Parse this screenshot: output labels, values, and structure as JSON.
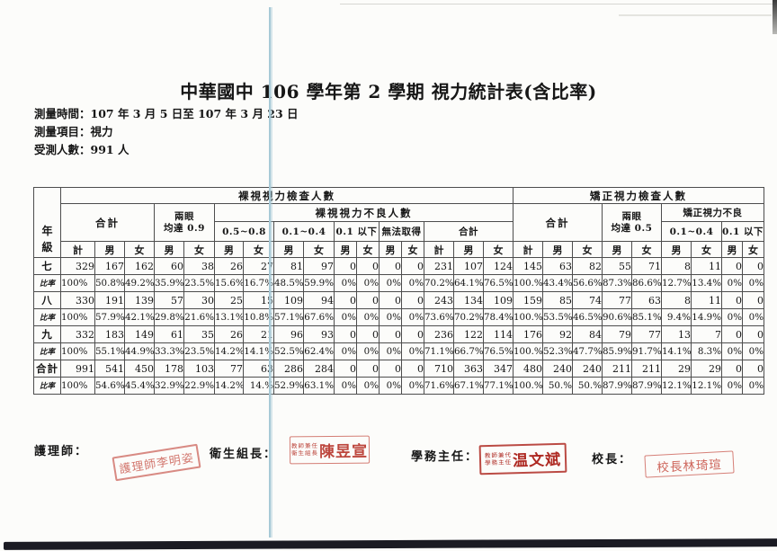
{
  "doc": {
    "title": "中華國中 106 學年第 2 學期 視力統計表(含比率)",
    "meta_lines": [
      "測量時間：107 年 3 月 5 日至 107 年 3 月 23 日",
      "測量項目：視力",
      "受測人數：991 人"
    ]
  },
  "table": {
    "columns": {
      "grade_l1": "年",
      "grade_l2": "級",
      "naked_group": "裸視視力檢查人數",
      "corrected_group": "矯正視力檢查人數",
      "total": "合計",
      "eyes09_l1": "兩眼",
      "eyes09_l2": "均達 0.9",
      "naked_poor_group": "裸視視力不良人數",
      "band_05_08": "0.5~0.8",
      "band_01_04": "0.1~0.4",
      "band_below_01": "0.1 以下",
      "band_na": "無法取得",
      "poor_total": "合計",
      "corr_total": "合計",
      "eyes05_l1": "兩眼",
      "eyes05_l2": "均達 0.5",
      "corr_poor_group": "矯正視力不良",
      "corr_01_04": "0.1~0.4",
      "corr_below_01": "0.1 以下"
    },
    "leaf_labels": [
      "計",
      "男",
      "女",
      "男",
      "女",
      "男",
      "女",
      "男",
      "女",
      "男",
      "女",
      "男",
      "女",
      "計",
      "男",
      "女",
      "計",
      "男",
      "女",
      "男",
      "女",
      "男",
      "女",
      "男",
      "女"
    ],
    "rows": [
      {
        "label": "七",
        "type": "grade",
        "cells": [
          "329",
          "167",
          "162",
          "60",
          "38",
          "26",
          "27",
          "81",
          "97",
          "0",
          "0",
          "0",
          "0",
          "231",
          "107",
          "124",
          "145",
          "63",
          "82",
          "55",
          "71",
          "8",
          "11",
          "0",
          "0"
        ]
      },
      {
        "label": "比率",
        "type": "ratio",
        "cells": [
          "100%",
          "50.8%",
          "49.2%",
          "35.9%",
          "23.5%",
          "15.6%",
          "16.7%",
          "48.5%",
          "59.9%",
          "0%",
          "0%",
          "0%",
          "0%",
          "70.2%",
          "64.1%",
          "76.5%",
          "100.%",
          "43.4%",
          "56.6%",
          "87.3%",
          "86.6%",
          "12.7%",
          "13.4%",
          "0%",
          "0%"
        ]
      },
      {
        "label": "八",
        "type": "grade",
        "cells": [
          "330",
          "191",
          "139",
          "57",
          "30",
          "25",
          "15",
          "109",
          "94",
          "0",
          "0",
          "0",
          "0",
          "243",
          "134",
          "109",
          "159",
          "85",
          "74",
          "77",
          "63",
          "8",
          "11",
          "0",
          "0"
        ]
      },
      {
        "label": "比率",
        "type": "ratio",
        "cells": [
          "100%",
          "57.9%",
          "42.1%",
          "29.8%",
          "21.6%",
          "13.1%",
          "10.8%",
          "57.1%",
          "67.6%",
          "0%",
          "0%",
          "0%",
          "0%",
          "73.6%",
          "70.2%",
          "78.4%",
          "100.%",
          "53.5%",
          "46.5%",
          "90.6%",
          "85.1%",
          "9.4%",
          "14.9%",
          "0%",
          "0%"
        ]
      },
      {
        "label": "九",
        "type": "grade",
        "cells": [
          "332",
          "183",
          "149",
          "61",
          "35",
          "26",
          "21",
          "96",
          "93",
          "0",
          "0",
          "0",
          "0",
          "236",
          "122",
          "114",
          "176",
          "92",
          "84",
          "79",
          "77",
          "13",
          "7",
          "0",
          "0"
        ]
      },
      {
        "label": "比率",
        "type": "ratio",
        "cells": [
          "100%",
          "55.1%",
          "44.9%",
          "33.3%",
          "23.5%",
          "14.2%",
          "14.1%",
          "52.5%",
          "62.4%",
          "0%",
          "0%",
          "0%",
          "0%",
          "71.1%",
          "66.7%",
          "76.5%",
          "100.%",
          "52.3%",
          "47.7%",
          "85.9%",
          "91.7%",
          "14.1%",
          "8.3%",
          "0%",
          "0%"
        ]
      },
      {
        "label": "合計",
        "type": "grade",
        "cells": [
          "991",
          "541",
          "450",
          "178",
          "103",
          "77",
          "63",
          "286",
          "284",
          "0",
          "0",
          "0",
          "0",
          "710",
          "363",
          "347",
          "480",
          "240",
          "240",
          "211",
          "211",
          "29",
          "29",
          "0",
          "0"
        ]
      },
      {
        "label": "比率",
        "type": "ratio",
        "cells": [
          "100%",
          "54.6%",
          "45.4%",
          "32.9%",
          "22.9%",
          "14.2%",
          "14.%",
          "52.9%",
          "63.1%",
          "0%",
          "0%",
          "0%",
          "0%",
          "71.6%",
          "67.1%",
          "77.1%",
          "100.%",
          "50.%",
          "50.%",
          "87.9%",
          "87.9%",
          "12.1%",
          "12.1%",
          "0%",
          "0%"
        ]
      }
    ]
  },
  "signatures": {
    "nurse_label": "護理師：",
    "nurse_stamp": "護理師李明姿",
    "health_label": "衛生組長：",
    "health_stamp_prefix_1": "教師兼任",
    "health_stamp_prefix_2": "衛生組長",
    "health_stamp_name": "陳昱宣",
    "academic_label": "學務主任：",
    "academic_stamp_prefix_1": "教師兼代",
    "academic_stamp_prefix_2": "學務主任",
    "academic_stamp_name": "温文斌",
    "principal_label": "校長：",
    "principal_stamp": "校長林琦瑄"
  },
  "colors": {
    "stamp_red": "#b42d23",
    "fold_line_blue": "#a7c9d6",
    "scan_bar_dark": "#1b1b23"
  }
}
